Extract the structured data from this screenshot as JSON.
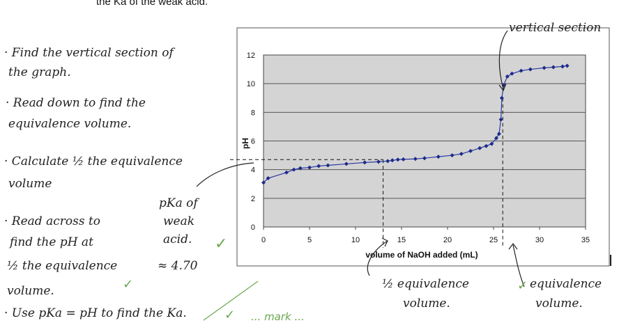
{
  "header": {
    "text": "the Ka of the weak acid."
  },
  "notes": {
    "step1_line1": "· Find the vertical section of",
    "step1_line2": "the graph.",
    "step2_line1": "· Read down to find the",
    "step2_line2": "equivalence volume.",
    "step3_line1": "· Calculate ½ the equivalence",
    "step3_line2": "volume",
    "step4_line1": "· Read across to",
    "step4_line2": "find the pH at",
    "step4_line3": "½ the equivalence",
    "step4_line4": "volume.",
    "step5_line1": "· Use pKa = pH to find the Ka.",
    "pka_line1": "pKa of",
    "pka_line2": "weak",
    "pka_line3": "acid.",
    "pka_line4": "≈ 4.70",
    "half_eq_line1": "½ equivalence",
    "half_eq_line2": "volume.",
    "eq_line1": "equivalence",
    "eq_line2": "volume.",
    "vertical_section": "vertical section",
    "bottom_partial": "... mark ...",
    "check_mark": "✓"
  },
  "chart_data": {
    "type": "scatter",
    "title": "",
    "xlabel": "volume of NaOH added (mL)",
    "ylabel": "pH",
    "xlim": [
      0,
      35
    ],
    "ylim": [
      0,
      12
    ],
    "xticks": [
      0,
      5,
      10,
      15,
      20,
      25,
      30,
      35
    ],
    "yticks": [
      0,
      2,
      4,
      6,
      8,
      10,
      12
    ],
    "grid": "horizontal",
    "series": [
      {
        "name": "",
        "color": "#2e3aa0",
        "points": [
          [
            0,
            3.1
          ],
          [
            0.5,
            3.4
          ],
          [
            2.5,
            3.8
          ],
          [
            3.3,
            4.0
          ],
          [
            4.0,
            4.1
          ],
          [
            5.0,
            4.15
          ],
          [
            6.0,
            4.25
          ],
          [
            7.0,
            4.3
          ],
          [
            9.0,
            4.4
          ],
          [
            11.0,
            4.5
          ],
          [
            12.5,
            4.55
          ],
          [
            13.5,
            4.6
          ],
          [
            14.0,
            4.65
          ],
          [
            14.6,
            4.7
          ],
          [
            15.2,
            4.72
          ],
          [
            16.5,
            4.75
          ],
          [
            17.5,
            4.8
          ],
          [
            19.0,
            4.9
          ],
          [
            20.5,
            5.0
          ],
          [
            21.5,
            5.1
          ],
          [
            22.5,
            5.3
          ],
          [
            23.5,
            5.5
          ],
          [
            24.2,
            5.65
          ],
          [
            24.8,
            5.8
          ],
          [
            25.3,
            6.2
          ],
          [
            25.6,
            6.5
          ],
          [
            25.8,
            7.5
          ],
          [
            25.9,
            9.0
          ],
          [
            26.1,
            9.9
          ],
          [
            26.5,
            10.5
          ],
          [
            27.0,
            10.7
          ],
          [
            28.0,
            10.9
          ],
          [
            29.0,
            11.0
          ],
          [
            30.5,
            11.1
          ],
          [
            31.5,
            11.15
          ],
          [
            32.5,
            11.2
          ],
          [
            33.0,
            11.25
          ]
        ]
      }
    ],
    "annotations": {
      "equivalence_volume": 26,
      "half_equivalence_volume": 13,
      "pka": 4.7
    }
  }
}
